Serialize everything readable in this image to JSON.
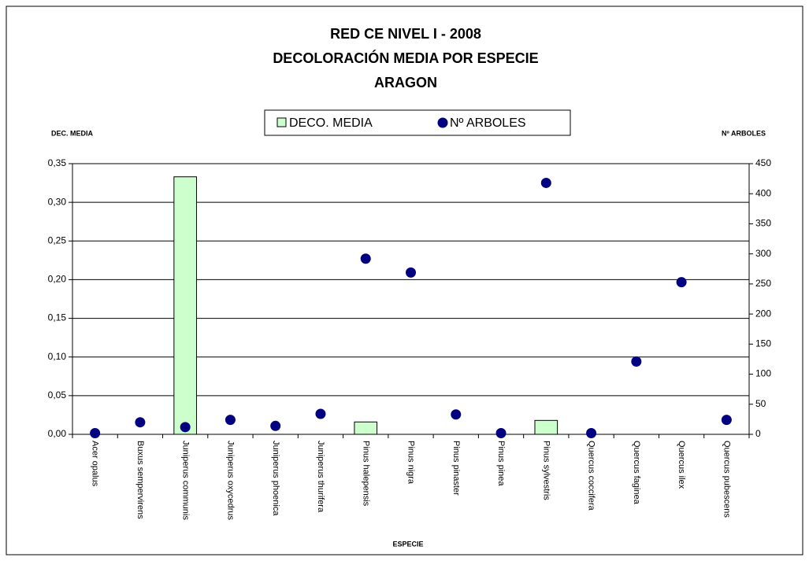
{
  "chart_data": {
    "type": "bar+scatter",
    "title": [
      "RED CE NIVEL I - 2008",
      "DECOLORACIÓN MEDIA POR ESPECIE",
      "ARAGON"
    ],
    "ylabel": "DEC. MEDIA",
    "y2label": "Nº ARBOLES",
    "xlabel": "ESPECIE",
    "categories": [
      "Acer opalus",
      "Buxus sempervirens",
      "Juniperus communis",
      "Juniperus oxycedrus",
      "Juniperus phoenica",
      "Juniperus thurifera",
      "Pinus halepensis",
      "Pinus nigra",
      "Pinus pinaster",
      "Pinus pinea",
      "Pinus sylvestris",
      "Quercus coccifera",
      "Quercus faginea",
      "Quercus ilex",
      "Quercus pubescens"
    ],
    "series": [
      {
        "name": "DECO. MEDIA",
        "color": "#ccffcc",
        "kind": "bar",
        "axis": "y",
        "values": [
          0,
          0,
          0.333,
          0,
          0,
          0,
          0.016,
          0,
          0,
          0,
          0.018,
          0,
          0,
          0,
          0
        ]
      },
      {
        "name": "Nº ARBOLES",
        "color": "#000080",
        "kind": "scatter",
        "axis": "y2",
        "values": [
          2,
          20,
          12,
          24,
          14,
          34,
          292,
          269,
          33,
          2,
          418,
          2,
          121,
          253,
          24
        ]
      }
    ],
    "ylim": [
      0,
      0.35
    ],
    "yticks": [
      {
        "value": 0,
        "label": "0,00"
      },
      {
        "value": 0.05,
        "label": "0,05"
      },
      {
        "value": 0.1,
        "label": "0,10"
      },
      {
        "value": 0.15,
        "label": "0,15"
      },
      {
        "value": 0.2,
        "label": "0,20"
      },
      {
        "value": 0.25,
        "label": "0,25"
      },
      {
        "value": 0.3,
        "label": "0,30"
      },
      {
        "value": 0.35,
        "label": "0,35"
      }
    ],
    "y2lim": [
      0,
      450
    ],
    "y2ticks": [
      0,
      50,
      100,
      150,
      200,
      250,
      300,
      350,
      400,
      450
    ],
    "grid": true
  }
}
